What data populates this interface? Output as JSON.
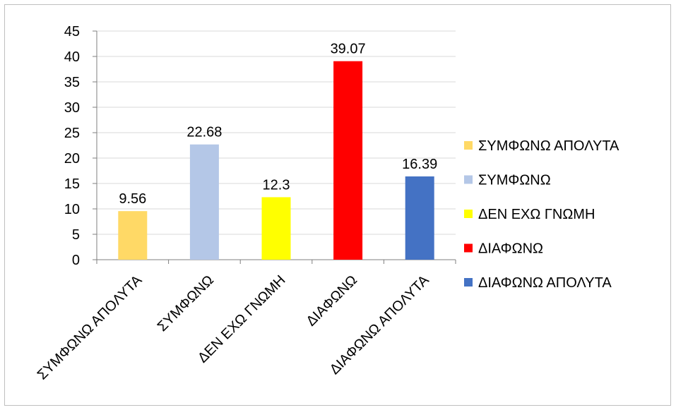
{
  "chart_data": {
    "type": "bar",
    "title": "",
    "xlabel": "",
    "ylabel": "",
    "categories": [
      "ΣΥΜΦΩΝΩ ΑΠΟΛΥΤΑ",
      "ΣΥΜΦΩΝΩ",
      "ΔΕΝ ΕΧΩ ΓΝΩΜΗ",
      "ΔΙΑΦΩΝΩ",
      "ΔΙΑΦΩΝΩ ΑΠΟΛΥΤΑ"
    ],
    "values": [
      9.56,
      22.68,
      12.3,
      39.07,
      16.39
    ],
    "data_labels": [
      "9.56",
      "22.68",
      "12.3",
      "39.07",
      "16.39"
    ],
    "colors": [
      "#FFD966",
      "#B4C7E7",
      "#FFFF00",
      "#FF0000",
      "#4472C4"
    ],
    "ylim": [
      0,
      45
    ],
    "yticks": [
      "0",
      "5",
      "10",
      "15",
      "20",
      "25",
      "30",
      "35",
      "40",
      "45"
    ],
    "grid": "horizontal",
    "legend": {
      "position": "right",
      "entries": [
        "ΣΥΜΦΩΝΩ ΑΠΟΛΥΤΑ",
        "ΣΥΜΦΩΝΩ",
        "ΔΕΝ ΕΧΩ ΓΝΩΜΗ",
        "ΔΙΑΦΩΝΩ",
        "ΔΙΑΦΩΝΩ ΑΠΟΛΥΤΑ"
      ]
    }
  }
}
